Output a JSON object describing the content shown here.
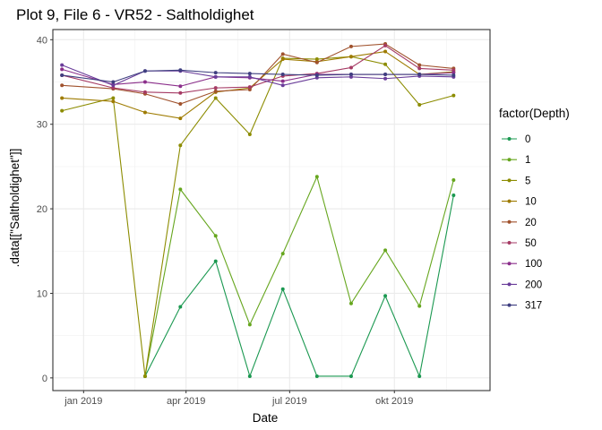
{
  "chart_data": {
    "type": "line",
    "title": "Plot 9, File 6 - VR52  -  Saltholdighet",
    "xlabel": "Date",
    "ylabel": ".data[[\"Saltholdighet\"]]",
    "legend_title": "factor(Depth)",
    "legend_position": "right",
    "grid": true,
    "xlim": [
      "2018-12-05",
      "2019-12-24"
    ],
    "ylim": [
      -1.5,
      41.2
    ],
    "x_ticks": [
      {
        "value": "2019-01-01",
        "label": "jan 2019"
      },
      {
        "value": "2019-04-01",
        "label": "apr 2019"
      },
      {
        "value": "2019-07-01",
        "label": "jul 2019"
      },
      {
        "value": "2019-10-01",
        "label": "okt 2019"
      }
    ],
    "y_ticks": [
      0,
      10,
      20,
      30,
      40
    ],
    "x": [
      "2018-12-13",
      "2019-01-27",
      "2019-02-24",
      "2019-03-27",
      "2019-04-27",
      "2019-05-27",
      "2019-06-25",
      "2019-07-25",
      "2019-08-24",
      "2019-09-23",
      "2019-10-23",
      "2019-11-22"
    ],
    "series": [
      {
        "name": "0",
        "color": "#1a9850",
        "values": [
          null,
          null,
          0.2,
          8.4,
          13.8,
          0.2,
          10.5,
          0.2,
          0.2,
          9.7,
          0.2,
          21.6
        ]
      },
      {
        "name": "1",
        "color": "#66a61e",
        "values": [
          null,
          null,
          0.2,
          22.3,
          16.8,
          6.3,
          14.7,
          23.8,
          8.8,
          15.1,
          8.5,
          23.4
        ]
      },
      {
        "name": "5",
        "color": "#8c8c00",
        "values": [
          31.6,
          33.1,
          0.2,
          27.5,
          33.1,
          28.8,
          37.8,
          37.7,
          38.0,
          37.1,
          32.3,
          33.4
        ]
      },
      {
        "name": "10",
        "color": "#9e7b00",
        "values": [
          33.1,
          32.7,
          31.4,
          30.7,
          33.8,
          34.3,
          37.7,
          37.4,
          38.0,
          38.6,
          35.9,
          36.2
        ]
      },
      {
        "name": "20",
        "color": "#a0522d",
        "values": [
          34.6,
          34.2,
          33.6,
          32.4,
          33.9,
          34.1,
          38.3,
          37.3,
          39.2,
          39.5,
          37.0,
          36.6
        ]
      },
      {
        "name": "50",
        "color": "#a53a64",
        "values": [
          35.8,
          34.3,
          33.8,
          33.7,
          34.3,
          34.4,
          35.7,
          36.0,
          36.7,
          39.3,
          36.6,
          36.4
        ]
      },
      {
        "name": "100",
        "color": "#8b2f8b",
        "values": [
          36.5,
          34.7,
          35.0,
          34.5,
          35.6,
          35.5,
          35.1,
          35.9,
          35.9,
          35.9,
          35.9,
          36.1
        ]
      },
      {
        "name": "200",
        "color": "#6a3d9a",
        "values": [
          37.0,
          34.6,
          36.3,
          36.3,
          35.6,
          35.6,
          34.6,
          35.5,
          35.6,
          35.4,
          35.7,
          35.6
        ]
      },
      {
        "name": "317",
        "color": "#3f3f80",
        "values": [
          35.8,
          35.0,
          36.3,
          36.4,
          36.1,
          36.0,
          35.9,
          35.8,
          35.9,
          35.9,
          35.9,
          35.8
        ]
      }
    ]
  }
}
